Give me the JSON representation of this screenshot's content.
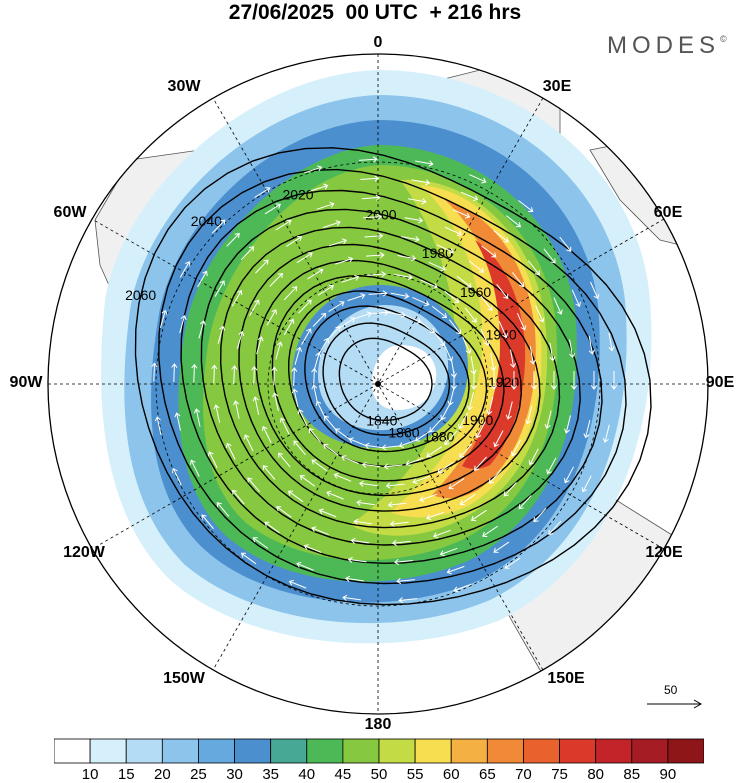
{
  "title": "27/06/2025  00 UTC  + 216 hrs",
  "brand": "MODES",
  "brand_mark": "©",
  "longitude_labels": [
    "0",
    "30E",
    "60E",
    "90E",
    "120E",
    "150E",
    "180",
    "150W",
    "120W",
    "90W",
    "60W",
    "30W"
  ],
  "contours": [
    {
      "value": "2060",
      "radius": 245
    },
    {
      "value": "2040",
      "radius": 222
    },
    {
      "value": "2020",
      "radius": 200
    },
    {
      "value": "2000",
      "radius": 180
    },
    {
      "value": "1980",
      "radius": 161
    },
    {
      "value": "1960",
      "radius": 143
    },
    {
      "value": "1940",
      "radius": 126
    },
    {
      "value": "1920",
      "radius": 110
    },
    {
      "value": "1900",
      "radius": 94
    },
    {
      "value": "1880",
      "radius": 78
    },
    {
      "value": "1860",
      "radius": 60
    },
    {
      "value": "1840",
      "radius": 44
    }
  ],
  "wind_scale": {
    "label": "50"
  },
  "colorbar": {
    "ticks": [
      "10",
      "15",
      "20",
      "25",
      "30",
      "35",
      "40",
      "45",
      "50",
      "55",
      "60",
      "65",
      "70",
      "75",
      "80",
      "85",
      "90"
    ],
    "colors": [
      "#ffffff",
      "#d6f0fb",
      "#b4ddf5",
      "#8cc4ec",
      "#65a9df",
      "#4b8fcf",
      "#47a896",
      "#4db956",
      "#86c940",
      "#c3dc46",
      "#f7dd50",
      "#f5b043",
      "#f08a36",
      "#e9622e",
      "#db3a2a",
      "#c2242a",
      "#a61c25",
      "#8e1518"
    ]
  }
}
